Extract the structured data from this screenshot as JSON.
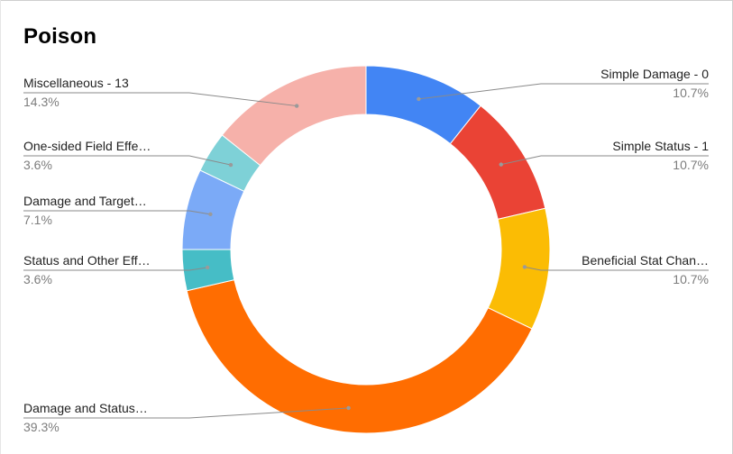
{
  "chart_data": {
    "type": "pie",
    "donut": true,
    "title": "Poison",
    "legend_placement": "labels-around",
    "slices": [
      {
        "label": "Simple Damage - 0",
        "percent_label": "10.7%",
        "value": 10.7,
        "color": "#4285F4"
      },
      {
        "label": "Simple Status - 1",
        "percent_label": "10.7%",
        "value": 10.7,
        "color": "#EA4335"
      },
      {
        "label": "Beneficial Stat Chan…",
        "percent_label": "10.7%",
        "value": 10.7,
        "color": "#FBBC04"
      },
      {
        "label": "Damage and Status…",
        "percent_label": "39.3%",
        "value": 39.3,
        "color": "#FF6D01"
      },
      {
        "label": "Status and Other Eff…",
        "percent_label": "3.6%",
        "value": 3.6,
        "color": "#46BDC6"
      },
      {
        "label": "Damage and Target…",
        "percent_label": "7.1%",
        "value": 7.1,
        "color": "#7BAAF7"
      },
      {
        "label": "One-sided Field Effe…",
        "percent_label": "3.6%",
        "value": 3.6,
        "color": "#7ED1D7"
      },
      {
        "label": "Miscellaneous - 13",
        "percent_label": "14.3%",
        "value": 14.3,
        "color": "#F6B1AA"
      }
    ]
  }
}
